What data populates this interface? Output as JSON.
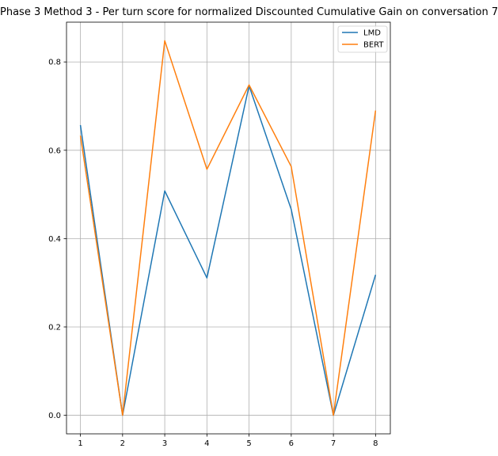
{
  "chart_data": {
    "type": "line",
    "title": "Phase 3 Method 3 - Per turn score for normalized Discounted Cumulative Gain on conversation 7",
    "xlabel": "",
    "ylabel": "",
    "x": [
      1,
      2,
      3,
      4,
      5,
      6,
      7,
      8
    ],
    "xticks": [
      "1",
      "2",
      "3",
      "4",
      "5",
      "6",
      "7",
      "8"
    ],
    "xlim": [
      0.67,
      8.35
    ],
    "ylim": [
      -0.042,
      0.89
    ],
    "yticks": [
      "0.0",
      "0.2",
      "0.4",
      "0.6",
      "0.8"
    ],
    "grid": true,
    "legend": "top-right",
    "series": [
      {
        "name": "LMD",
        "color": "#1f77b4",
        "values": [
          0.657,
          0.0,
          0.508,
          0.311,
          0.746,
          0.466,
          0.0,
          0.318
        ]
      },
      {
        "name": "BERT",
        "color": "#ff7f0e",
        "values": [
          0.633,
          0.0,
          0.848,
          0.557,
          0.748,
          0.563,
          0.0,
          0.69
        ]
      }
    ]
  }
}
